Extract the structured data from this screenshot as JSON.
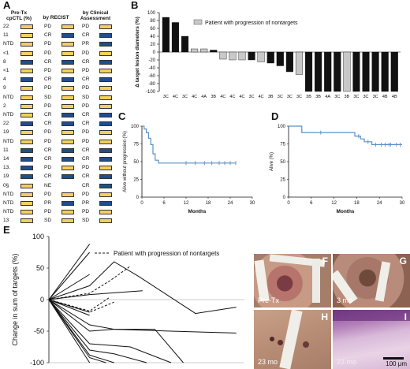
{
  "panel_letters": [
    "A",
    "B",
    "C",
    "D",
    "E",
    "F",
    "G",
    "H",
    "I"
  ],
  "colors": {
    "yellow": "#f4cf5e",
    "blue": "#1f4e8c",
    "bar_black": "#111111",
    "bar_gray": "#c8c8c8",
    "curve": "#5b8fc4"
  },
  "panelA": {
    "headers": {
      "pretx": "Pre-Tx\ncpCTL (%)",
      "recist": "by RECIST",
      "clinical": "by Clinical\nAssessment"
    },
    "rows": [
      {
        "pre": "22",
        "pre_c": "Y",
        "rec": "PD",
        "rec_c": "Y",
        "clin": "PD",
        "clin_c": "Y"
      },
      {
        "pre": "11",
        "pre_c": "Y",
        "rec": "CR",
        "rec_c": "B",
        "clin": "CR",
        "clin_c": "B"
      },
      {
        "pre": "NTD",
        "pre_c": "Y",
        "rec": "PD",
        "rec_c": "Y",
        "clin": "PR",
        "clin_c": "B"
      },
      {
        "pre": "<1",
        "pre_c": "Y",
        "rec": "PD",
        "rec_c": "Y",
        "clin": "PD",
        "clin_c": "Y"
      },
      {
        "pre": "8",
        "pre_c": "B",
        "rec": "CR",
        "rec_c": "B",
        "clin": "CR",
        "clin_c": "B"
      },
      {
        "pre": "<1",
        "pre_c": "Y",
        "rec": "PD",
        "rec_c": "Y",
        "clin": "PD",
        "clin_c": "Y"
      },
      {
        "pre": "4",
        "pre_c": "B",
        "rec": "CR",
        "rec_c": "B",
        "clin": "CR",
        "clin_c": "B"
      },
      {
        "pre": "9",
        "pre_c": "Y",
        "rec": "PD",
        "rec_c": "Y",
        "clin": "PD",
        "clin_c": "Y"
      },
      {
        "pre": "NTD",
        "pre_c": "Y",
        "rec": "SD",
        "rec_c": "Y",
        "clin": "SD",
        "clin_c": "Y"
      },
      {
        "pre": "2",
        "pre_c": "Y",
        "rec": "PD",
        "rec_c": "Y",
        "clin": "PD",
        "clin_c": "Y"
      },
      {
        "pre": "NTD",
        "pre_c": "Y",
        "rec": "CR",
        "rec_c": "B",
        "clin": "CR",
        "clin_c": "B"
      },
      {
        "pre": "22",
        "pre_c": "B",
        "rec": "CR",
        "rec_c": "B",
        "clin": "CR",
        "clin_c": "B"
      },
      {
        "pre": "19",
        "pre_c": "Y",
        "rec": "PD",
        "rec_c": "Y",
        "clin": "PD",
        "clin_c": "Y"
      },
      {
        "pre": "NTD",
        "pre_c": "Y",
        "rec": "PD",
        "rec_c": "Y",
        "clin": "PD",
        "clin_c": "Y"
      },
      {
        "pre": "11",
        "pre_c": "B",
        "rec": "CR",
        "rec_c": "B",
        "clin": "CR",
        "clin_c": "B"
      },
      {
        "pre": "14",
        "pre_c": "B",
        "rec": "CR",
        "rec_c": "B",
        "clin": "CR",
        "clin_c": "B"
      },
      {
        "pre": "13.",
        "pre_c": "B",
        "rec": "PD",
        "rec_c": "Y",
        "clin": "PD",
        "clin_c": "Y"
      },
      {
        "pre": "19",
        "pre_c": "B",
        "rec": "CR",
        "rec_c": "B",
        "clin": "CR",
        "clin_c": "B"
      },
      {
        "pre": "0§",
        "pre_c": "Y",
        "rec": "NE",
        "rec_c": "N",
        "clin": "CR",
        "clin_c": "B"
      },
      {
        "pre": "NTD",
        "pre_c": "Y",
        "rec": "PD",
        "rec_c": "Y",
        "clin": "PD",
        "clin_c": "Y"
      },
      {
        "pre": "NTD",
        "pre_c": "Y",
        "rec": "PR",
        "rec_c": "B",
        "clin": "PR",
        "clin_c": "B"
      },
      {
        "pre": "NTD",
        "pre_c": "Y",
        "rec": "PD",
        "rec_c": "Y",
        "clin": "PD",
        "clin_c": "Y"
      },
      {
        "pre": "13",
        "pre_c": "Y",
        "rec": "SD",
        "rec_c": "Y",
        "clin": "SD",
        "clin_c": "Y"
      }
    ]
  },
  "chart_data": [
    {
      "panel": "B",
      "type": "bar",
      "ylabel": "Δ target lesion diameters (%)",
      "legend": "Patient with progression of nontargets",
      "ylim": [
        -100,
        100
      ],
      "yticks": [
        100,
        80,
        60,
        40,
        20,
        0,
        -20,
        -40,
        -60,
        -80,
        -100
      ],
      "categories": [
        "3C",
        "4C",
        "3C",
        "4C",
        "4A",
        "3B",
        "4C",
        "4C",
        "4C",
        "3C",
        "4C",
        "3B",
        "3C",
        "3C",
        "3C",
        "3B",
        "3B",
        "4A",
        "3C",
        "3B",
        "3C",
        "3C",
        "3C",
        "4B",
        "4B"
      ],
      "values": [
        88,
        75,
        40,
        8,
        8,
        5,
        -18,
        -20,
        -20,
        -20,
        -25,
        -28,
        -35,
        -50,
        -57,
        -100,
        -100,
        -100,
        -100,
        -100,
        -100,
        -100,
        -100,
        -100,
        -100
      ],
      "progression_nontargets": [
        false,
        false,
        false,
        true,
        true,
        false,
        true,
        true,
        true,
        false,
        true,
        false,
        false,
        false,
        true,
        false,
        false,
        false,
        false,
        true,
        false,
        false,
        false,
        false,
        false
      ]
    },
    {
      "panel": "C",
      "type": "line",
      "ylabel": "Alive without progression (%)",
      "xlabel": "Months",
      "xlim": [
        0,
        30
      ],
      "ylim": [
        0,
        100
      ],
      "xticks": [
        0,
        6,
        12,
        18,
        24,
        30
      ],
      "yticks": [
        0,
        25,
        50,
        75,
        100
      ],
      "steps": [
        [
          0,
          100
        ],
        [
          0.6,
          100
        ],
        [
          0.6,
          96
        ],
        [
          1.2,
          96
        ],
        [
          1.2,
          91
        ],
        [
          1.8,
          91
        ],
        [
          1.8,
          83
        ],
        [
          2.4,
          83
        ],
        [
          2.4,
          74
        ],
        [
          3,
          74
        ],
        [
          3,
          61
        ],
        [
          3.6,
          61
        ],
        [
          3.6,
          52
        ],
        [
          4.5,
          52
        ],
        [
          4.5,
          48
        ],
        [
          25.5,
          48
        ]
      ],
      "censored": [
        12,
        14.5,
        17,
        19,
        21,
        22.5,
        24,
        25.5
      ]
    },
    {
      "panel": "D",
      "type": "line",
      "ylabel": "Alive (%)",
      "xlabel": "Months",
      "xlim": [
        0,
        30
      ],
      "ylim": [
        0,
        100
      ],
      "xticks": [
        0,
        6,
        12,
        18,
        24,
        30
      ],
      "yticks": [
        0,
        25,
        50,
        75,
        100
      ],
      "steps": [
        [
          0,
          100
        ],
        [
          3.5,
          100
        ],
        [
          3.5,
          91
        ],
        [
          17.5,
          91
        ],
        [
          17.5,
          86
        ],
        [
          19,
          86
        ],
        [
          19,
          82
        ],
        [
          20,
          82
        ],
        [
          20,
          78
        ],
        [
          22,
          78
        ],
        [
          22,
          74
        ],
        [
          30,
          74
        ]
      ],
      "censored": [
        8.5,
        18.5,
        21,
        23,
        24.5,
        25.5,
        26.5,
        27,
        28.5,
        29.5
      ]
    },
    {
      "panel": "E",
      "type": "line",
      "ylabel": "Change in sum of targets (%)",
      "legend": "Patient with progression of nontargets",
      "ylim": [
        -100,
        100
      ],
      "yticks": [
        100,
        50,
        0,
        -50,
        -100
      ],
      "series": [
        {
          "dashed": false,
          "points": [
            [
              0,
              0
            ],
            [
              1,
              88
            ]
          ]
        },
        {
          "dashed": false,
          "points": [
            [
              0,
              0
            ],
            [
              1,
              75
            ]
          ]
        },
        {
          "dashed": false,
          "points": [
            [
              0,
              0
            ],
            [
              1,
              40
            ]
          ]
        },
        {
          "dashed": false,
          "points": [
            [
              0,
              0
            ],
            [
              1,
              22
            ],
            [
              1.6,
              60
            ],
            [
              2.2,
              37
            ],
            [
              3.6,
              -22
            ],
            [
              4.6,
              -12
            ]
          ]
        },
        {
          "dashed": true,
          "points": [
            [
              0,
              0
            ],
            [
              1,
              10
            ],
            [
              1.5,
              30
            ],
            [
              2,
              53
            ]
          ]
        },
        {
          "dashed": true,
          "points": [
            [
              0,
              0
            ],
            [
              1,
              -18
            ],
            [
              1.5,
              4
            ]
          ]
        },
        {
          "dashed": true,
          "points": [
            [
              0,
              0
            ],
            [
              1,
              -20
            ],
            [
              1.6,
              -4
            ]
          ]
        },
        {
          "dashed": false,
          "points": [
            [
              0,
              0
            ],
            [
              1,
              8
            ],
            [
              2.3,
              14
            ]
          ]
        },
        {
          "dashed": false,
          "points": [
            [
              0,
              0
            ],
            [
              1,
              -40
            ],
            [
              1.6,
              -47
            ],
            [
              3,
              -50
            ],
            [
              4.6,
              -53
            ]
          ]
        },
        {
          "dashed": false,
          "points": [
            [
              0,
              0
            ],
            [
              1,
              -50
            ],
            [
              1.6,
              -47
            ],
            [
              2.6,
              -47
            ],
            [
              3.3,
              -100
            ]
          ]
        },
        {
          "dashed": false,
          "points": [
            [
              0,
              0
            ],
            [
              1,
              -70
            ],
            [
              2,
              -75
            ],
            [
              3,
              -100
            ]
          ]
        },
        {
          "dashed": false,
          "points": [
            [
              0,
              0
            ],
            [
              1,
              -80
            ],
            [
              1.6,
              -86
            ],
            [
              2.4,
              -100
            ]
          ]
        },
        {
          "dashed": false,
          "points": [
            [
              0,
              0
            ],
            [
              1,
              -88
            ],
            [
              1.6,
              -100
            ]
          ]
        },
        {
          "dashed": false,
          "points": [
            [
              0,
              0
            ],
            [
              1,
              -92
            ],
            [
              1.4,
              -100
            ]
          ]
        },
        {
          "dashed": false,
          "points": [
            [
              0,
              0
            ],
            [
              1,
              -100
            ]
          ]
        },
        {
          "dashed": false,
          "points": [
            [
              0,
              0
            ],
            [
              1,
              -20
            ]
          ]
        },
        {
          "dashed": false,
          "points": [
            [
              0,
              0
            ],
            [
              1,
              -25
            ]
          ]
        }
      ]
    }
  ],
  "photos": {
    "F": {
      "label": "Pre-Tx"
    },
    "G": {
      "label": "3 mo"
    },
    "H": {
      "label": "23 mo"
    },
    "I": {
      "label_left": "23 mo",
      "scalebar": "100 μm"
    }
  }
}
